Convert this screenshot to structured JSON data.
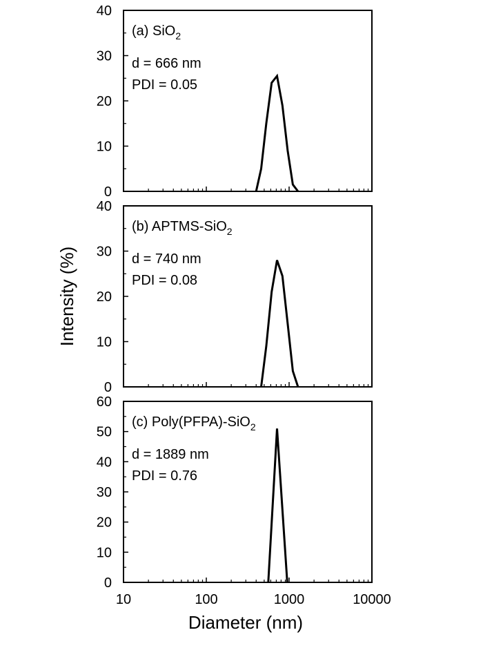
{
  "chart_data": [
    {
      "type": "line",
      "panel_label": "(a) SiO",
      "panel_label_sub": "2",
      "annotations": [
        "d = 666 nm",
        "PDI = 0.05"
      ],
      "x_scale": "log",
      "xlim": [
        10,
        10000
      ],
      "ylim": [
        0,
        40
      ],
      "yticks": [
        0,
        10,
        20,
        30,
        40
      ],
      "grid": false,
      "series": [
        {
          "x": [
            400,
            460,
            530,
            615,
            715,
            830,
            960,
            1110,
            1280
          ],
          "y": [
            0,
            5,
            15,
            24,
            25.5,
            19,
            9,
            1.5,
            0
          ]
        }
      ]
    },
    {
      "type": "line",
      "panel_label": "(b) APTMS-SiO",
      "panel_label_sub": "2",
      "annotations": [
        "d = 740 nm",
        "PDI = 0.08"
      ],
      "x_scale": "log",
      "xlim": [
        10,
        10000
      ],
      "ylim": [
        0,
        40
      ],
      "yticks": [
        0,
        10,
        20,
        30,
        40
      ],
      "grid": false,
      "series": [
        {
          "x": [
            460,
            530,
            615,
            715,
            830,
            960,
            1110,
            1280
          ],
          "y": [
            0,
            9,
            21,
            28,
            24.5,
            14,
            3.5,
            0
          ]
        }
      ]
    },
    {
      "type": "line",
      "panel_label": "(c) Poly(PFPA)-SiO",
      "panel_label_sub": "2",
      "annotations": [
        "d = 1889 nm",
        "PDI = 0.76"
      ],
      "x_scale": "log",
      "xlim": [
        10,
        10000
      ],
      "ylim": [
        0,
        60
      ],
      "yticks": [
        0,
        10,
        20,
        30,
        40,
        50,
        60
      ],
      "grid": false,
      "series": [
        {
          "x": [
            560,
            715,
            950
          ],
          "y": [
            0,
            51,
            0
          ]
        }
      ]
    }
  ],
  "shared_axes": {
    "ylabel": "Intensity (%)",
    "xlabel": "Diameter (nm)",
    "xticks": [
      10,
      100,
      1000,
      10000
    ],
    "xtick_labels": [
      "10",
      "100",
      "1000",
      "10000"
    ]
  },
  "colors": {
    "line": "#000000",
    "axes": "#000000",
    "background": "#ffffff"
  }
}
